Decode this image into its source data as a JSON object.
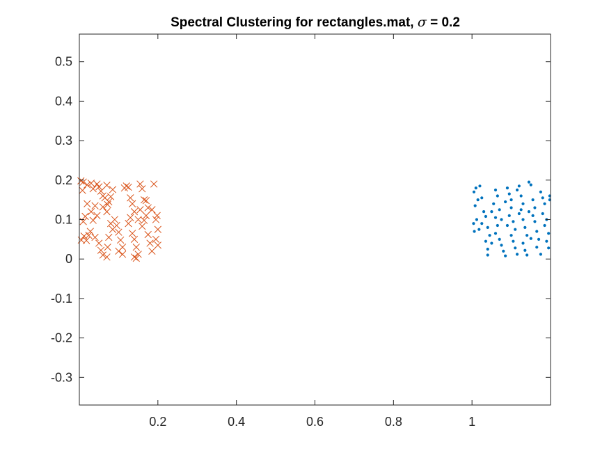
{
  "chart_data": {
    "type": "scatter",
    "title_prefix": "Spectral Clustering for rectangles.mat, ",
    "title_symbol": "σ",
    "title_suffix": " = 0.2",
    "xlabel": "",
    "ylabel": "",
    "xlim": [
      0,
      1.2
    ],
    "ylim": [
      -0.37,
      0.57
    ],
    "xticks": [
      0.2,
      0.4,
      0.6,
      0.8,
      1
    ],
    "xtick_labels": [
      "0.2",
      "0.4",
      "0.6",
      "0.8",
      "1"
    ],
    "yticks": [
      0.5,
      0.4,
      0.3,
      0.2,
      0.1,
      0,
      -0.1,
      -0.2,
      -0.3
    ],
    "ytick_labels": [
      "0.5",
      "0.4",
      "0.3",
      "0.2",
      "0.1",
      "0",
      "-0.1",
      "-0.2",
      "-0.3"
    ],
    "grid": false,
    "legend": "none",
    "series": [
      {
        "marker": "cross",
        "color": "#D95319",
        "points": [
          [
            0.004,
            0.198
          ],
          [
            0.01,
            0.195
          ],
          [
            0.008,
            0.174
          ],
          [
            0.02,
            0.188
          ],
          [
            0.03,
            0.192
          ],
          [
            0.035,
            0.178
          ],
          [
            0.045,
            0.19
          ],
          [
            0.05,
            0.183
          ],
          [
            0.055,
            0.172
          ],
          [
            0.06,
            0.16
          ],
          [
            0.065,
            0.155
          ],
          [
            0.07,
            0.187
          ],
          [
            0.075,
            0.145
          ],
          [
            0.08,
            0.158
          ],
          [
            0.085,
            0.176
          ],
          [
            0.06,
            0.132
          ],
          [
            0.07,
            0.12
          ],
          [
            0.072,
            0.138
          ],
          [
            0.04,
            0.135
          ],
          [
            0.03,
            0.12
          ],
          [
            0.02,
            0.14
          ],
          [
            0.015,
            0.108
          ],
          [
            0.01,
            0.095
          ],
          [
            0.035,
            0.098
          ],
          [
            0.045,
            0.11
          ],
          [
            0.028,
            0.07
          ],
          [
            0.012,
            0.058
          ],
          [
            0.005,
            0.048
          ],
          [
            0.018,
            0.047
          ],
          [
            0.024,
            0.06
          ],
          [
            0.04,
            0.055
          ],
          [
            0.05,
            0.04
          ],
          [
            0.055,
            0.022
          ],
          [
            0.06,
            0.01
          ],
          [
            0.07,
            0.005
          ],
          [
            0.072,
            0.03
          ],
          [
            0.075,
            0.055
          ],
          [
            0.08,
            0.09
          ],
          [
            0.085,
            0.075
          ],
          [
            0.09,
            0.1
          ],
          [
            0.095,
            0.085
          ],
          [
            0.1,
            0.068
          ],
          [
            0.105,
            0.048
          ],
          [
            0.11,
            0.03
          ],
          [
            0.1,
            0.02
          ],
          [
            0.11,
            0.012
          ],
          [
            0.115,
            0.18
          ],
          [
            0.12,
            0.185
          ],
          [
            0.125,
            0.182
          ],
          [
            0.13,
            0.155
          ],
          [
            0.135,
            0.14
          ],
          [
            0.14,
            0.12
          ],
          [
            0.13,
            0.105
          ],
          [
            0.125,
            0.09
          ],
          [
            0.135,
            0.065
          ],
          [
            0.14,
            0.05
          ],
          [
            0.145,
            0.03
          ],
          [
            0.14,
            0.005
          ],
          [
            0.145,
            0.002
          ],
          [
            0.15,
            0.012
          ],
          [
            0.155,
            0.19
          ],
          [
            0.16,
            0.178
          ],
          [
            0.165,
            0.15
          ],
          [
            0.17,
            0.148
          ],
          [
            0.175,
            0.13
          ],
          [
            0.17,
            0.11
          ],
          [
            0.165,
            0.098
          ],
          [
            0.16,
            0.083
          ],
          [
            0.175,
            0.062
          ],
          [
            0.18,
            0.04
          ],
          [
            0.185,
            0.02
          ],
          [
            0.19,
            0.19
          ],
          [
            0.185,
            0.125
          ],
          [
            0.195,
            0.1
          ],
          [
            0.2,
            0.075
          ],
          [
            0.195,
            0.05
          ],
          [
            0.2,
            0.035
          ],
          [
            0.198,
            0.11
          ],
          [
            0.15,
            0.1
          ],
          [
            0.155,
            0.125
          ]
        ]
      },
      {
        "marker": "dot",
        "color": "#0072BD",
        "points": [
          [
            1.005,
            0.17
          ],
          [
            1.01,
            0.18
          ],
          [
            1.015,
            0.15
          ],
          [
            1.02,
            0.185
          ],
          [
            1.008,
            0.135
          ],
          [
            1.025,
            0.155
          ],
          [
            1.03,
            0.12
          ],
          [
            1.012,
            0.1
          ],
          [
            1.004,
            0.09
          ],
          [
            1.018,
            0.075
          ],
          [
            1.006,
            0.07
          ],
          [
            1.035,
            0.108
          ],
          [
            1.04,
            0.08
          ],
          [
            1.045,
            0.06
          ],
          [
            1.05,
            0.04
          ],
          [
            1.035,
            0.045
          ],
          [
            1.04,
            0.025
          ],
          [
            1.04,
            0.01
          ],
          [
            1.055,
            0.14
          ],
          [
            1.06,
            0.175
          ],
          [
            1.065,
            0.16
          ],
          [
            1.07,
            0.125
          ],
          [
            1.075,
            0.1
          ],
          [
            1.065,
            0.085
          ],
          [
            1.06,
            0.065
          ],
          [
            1.07,
            0.05
          ],
          [
            1.075,
            0.035
          ],
          [
            1.08,
            0.02
          ],
          [
            1.085,
            0.008
          ],
          [
            1.09,
            0.18
          ],
          [
            1.095,
            0.165
          ],
          [
            1.1,
            0.15
          ],
          [
            1.1,
            0.13
          ],
          [
            1.095,
            0.11
          ],
          [
            1.105,
            0.095
          ],
          [
            1.11,
            0.075
          ],
          [
            1.1,
            0.06
          ],
          [
            1.105,
            0.045
          ],
          [
            1.11,
            0.028
          ],
          [
            1.115,
            0.012
          ],
          [
            1.12,
            0.185
          ],
          [
            1.125,
            0.16
          ],
          [
            1.13,
            0.14
          ],
          [
            1.125,
            0.125
          ],
          [
            1.12,
            0.115
          ],
          [
            1.13,
            0.1
          ],
          [
            1.135,
            0.08
          ],
          [
            1.14,
            0.06
          ],
          [
            1.13,
            0.04
          ],
          [
            1.135,
            0.022
          ],
          [
            1.14,
            0.01
          ],
          [
            1.145,
            0.195
          ],
          [
            1.15,
            0.188
          ],
          [
            1.155,
            0.15
          ],
          [
            1.16,
            0.13
          ],
          [
            1.155,
            0.11
          ],
          [
            1.16,
            0.095
          ],
          [
            1.165,
            0.07
          ],
          [
            1.17,
            0.05
          ],
          [
            1.165,
            0.03
          ],
          [
            1.175,
            0.012
          ],
          [
            1.175,
            0.17
          ],
          [
            1.18,
            0.155
          ],
          [
            1.185,
            0.14
          ],
          [
            1.18,
            0.115
          ],
          [
            1.19,
            0.1
          ],
          [
            1.185,
            0.085
          ],
          [
            1.195,
            0.065
          ],
          [
            1.19,
            0.045
          ],
          [
            1.195,
            0.028
          ],
          [
            1.198,
            0.16
          ],
          [
            1.198,
            0.15
          ],
          [
            1.05,
            0.12
          ],
          [
            1.085,
            0.145
          ],
          [
            1.145,
            0.12
          ],
          [
            1.06,
            0.105
          ],
          [
            1.09,
            0.085
          ],
          [
            1.15,
            0.052
          ],
          [
            1.025,
            0.09
          ],
          [
            1.115,
            0.175
          ]
        ]
      }
    ]
  }
}
